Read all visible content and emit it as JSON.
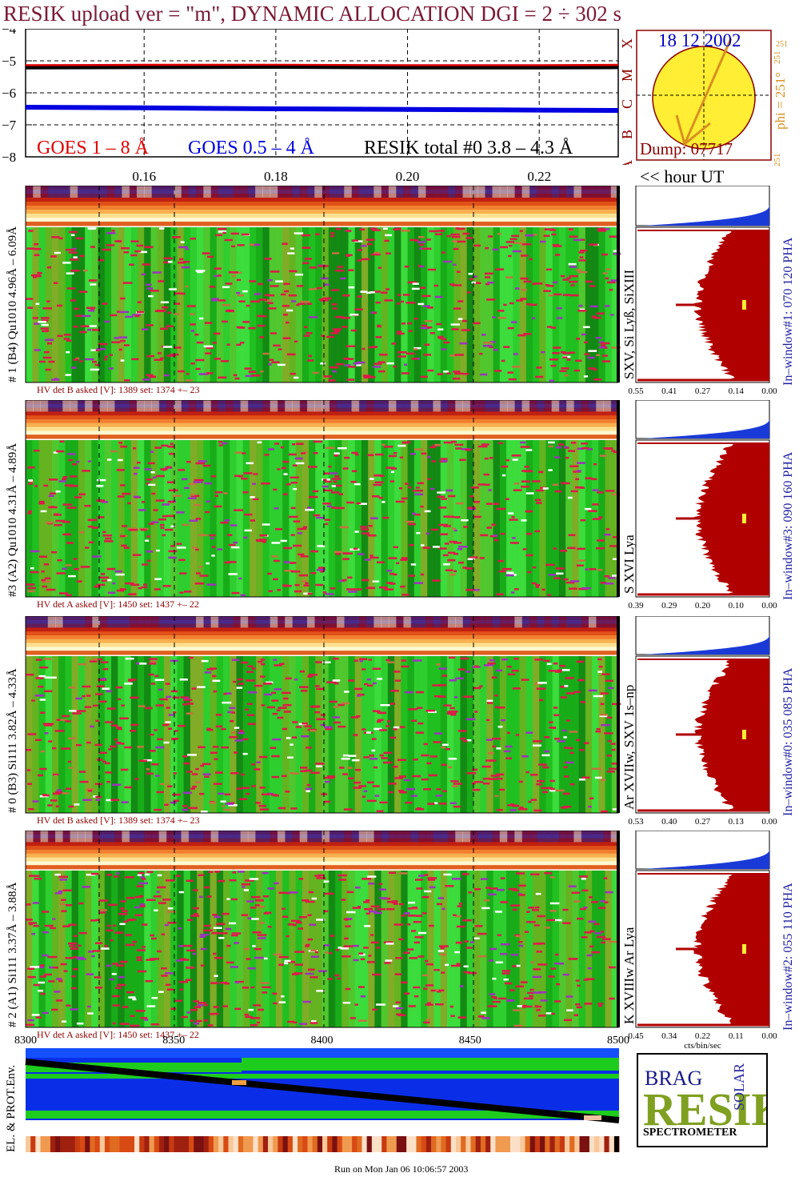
{
  "header": {
    "title": "RESIK upload ver = \"m\", DYNAMIC ALLOCATION  DGI =   2 ÷ 302 s"
  },
  "goes_panel": {
    "legend_goes_long": "GOES 1 – 8 Å",
    "legend_goes_short": "GOES 0.5 – 4 Å",
    "legend_resik": "RESIK total #0  3.8 – 4.3 Å",
    "hour_axis_label": "<< hour UT",
    "goes_class_labels": [
      "X",
      "M",
      "C",
      "B",
      "A"
    ],
    "colors": {
      "goes_long": "#e00000",
      "goes_short": "#0000e0",
      "resik": "#000000"
    }
  },
  "sun_panel": {
    "date": "18 12 2002",
    "dump": "Dump: 07717",
    "phi_label": "phi = 251°",
    "phi_small_top": "251",
    "phi_small_right": "251",
    "phi_small_bottom": "251"
  },
  "chart_data": [
    {
      "type": "line",
      "name": "goes-lightcurve",
      "x_label_values": [
        "0.16",
        "0.18",
        "0.20",
        "0.22"
      ],
      "x": [
        0.142,
        0.16,
        0.18,
        0.2,
        0.22,
        0.232
      ],
      "ylim": [
        -8,
        -4
      ],
      "yticks": [
        "−4",
        "−5",
        "−6",
        "−7",
        "−8"
      ],
      "series": [
        {
          "name": "GOES 1 – 8 Å",
          "values": [
            -5.18,
            -5.17,
            -5.17,
            -5.18,
            -5.18,
            -5.17
          ]
        },
        {
          "name": "GOES 0.5 – 4 Å",
          "values": [
            -6.45,
            -6.47,
            -6.5,
            -6.52,
            -6.54,
            -6.55
          ]
        },
        {
          "name": "RESIK total #0  3.8 – 4.3 Å",
          "values": [
            -5.22,
            -5.21,
            -5.2,
            -5.22,
            -5.22,
            -5.21
          ]
        }
      ]
    },
    {
      "type": "heatmap",
      "name": "detector-1",
      "vertical_label": "# 1 (B4) Qu1010 4.96Å – 6.09Å",
      "line_label": "SXV, Si Lyß, SiXIII",
      "window_label": "In–window#1:  070 120 PHA",
      "hv_text": "HV det B asked [V]:  1389 set:  1374  +–    23",
      "pha_ticks": [
        "0.55",
        "0.41",
        "0.27",
        "0.14",
        "0.00"
      ]
    },
    {
      "type": "heatmap",
      "name": "detector-3",
      "vertical_label": "#3 (A2) Qu1010  4.31Å – 4.89Å",
      "line_label": "S XVI Lya",
      "window_label": "In–window#3:  090 160 PHA",
      "hv_text": "HV det A asked [V]:  1450 set:  1437  +–    22",
      "pha_ticks": [
        "0.39",
        "0.29",
        "0.20",
        "0.10",
        "0.00"
      ]
    },
    {
      "type": "heatmap",
      "name": "detector-0",
      "vertical_label": "# 0 (B3) Si111  3.82Å – 4.33Å",
      "line_label": "Ar XVIIw,  SXV 1s–np",
      "window_label": "In–window#0:  035 085 PHA",
      "hv_text": "HV det B asked [V]:  1389 set:  1374  +–    23",
      "pha_ticks": [
        "0.53",
        "0.40",
        "0.27",
        "0.13",
        "0.00"
      ]
    },
    {
      "type": "heatmap",
      "name": "detector-2",
      "vertical_label": "# 2 (A1) Si111  3.37Å –  3.88Å",
      "line_label": "K XVIIIw  Ar Lya",
      "window_label": "In–window#2:  055 110 PHA",
      "hv_text": "HV det A asked [V]:  1450 set:  1437  +–    22",
      "pha_ticks": [
        "0.45",
        "0.34",
        "0.22",
        "0.11",
        "0.00"
      ],
      "pha_xlabel": "cts/bin/sec"
    }
  ],
  "bottom_panel": {
    "x_ticks": [
      "8300",
      "8350",
      "8400",
      "8450",
      "8500"
    ],
    "vertical_label": "EL. & PROT.Env."
  },
  "logo": {
    "letters_big": "RESIK",
    "letters_small": "BRAG",
    "solar": "SOLAR",
    "name": "SPECTROMETER"
  },
  "footer": {
    "run_text": "Run on Mon Jan 06 10:06:57 2003"
  }
}
